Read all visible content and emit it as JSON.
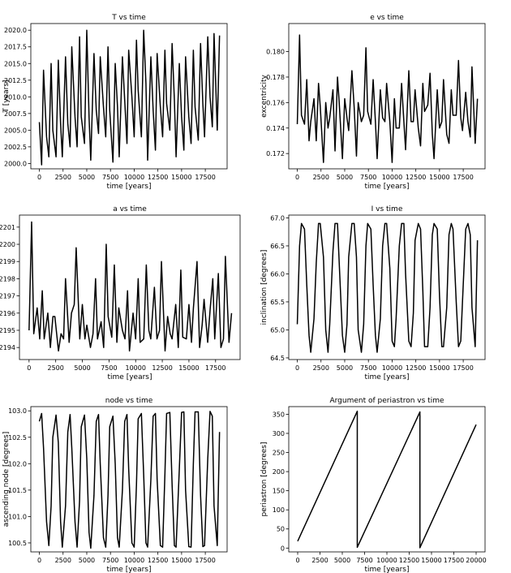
{
  "chart_data": [
    {
      "type": "line",
      "title": "T vs time",
      "xlabel": "time [years]",
      "ylabel": "T [years]",
      "xlim": [
        -900,
        19800
      ],
      "ylim": [
        1999.2,
        2021.0
      ],
      "xticks": [
        0,
        2500,
        5000,
        7500,
        10000,
        12500,
        15000,
        17500
      ],
      "yticks": [
        2000.0,
        2002.5,
        2005.0,
        2007.5,
        2010.0,
        2012.5,
        2015.0,
        2017.5,
        2020.0
      ],
      "ytick_decimals": 1,
      "series": [
        {
          "x": [
            0,
            240,
            440,
            760,
            1000,
            1240,
            1420,
            1760,
            2000,
            2240,
            2420,
            2760,
            3000,
            3240,
            3420,
            3760,
            3980,
            4240,
            4420,
            4760,
            5000,
            5240,
            5420,
            5760,
            6000,
            6240,
            6420,
            6760,
            7000,
            7240,
            7420,
            7760,
            8000,
            8240,
            8420,
            8760,
            9000,
            9240,
            9420,
            9760,
            10000,
            10240,
            10420,
            10760,
            11000,
            11240,
            11420,
            11760,
            12000,
            12240,
            12420,
            12760,
            13000,
            13240,
            13420,
            13760,
            14000,
            14240,
            14420,
            14760,
            15000,
            15240,
            15420,
            15760,
            16000,
            16240,
            16420,
            16760,
            17000,
            17240,
            17420,
            17760,
            18000,
            18240,
            18420,
            18760,
            19000
          ],
          "y": [
            2006.2,
            1999.8,
            2014.0,
            2004.0,
            2001.0,
            2015.0,
            2005.0,
            2001.0,
            2015.5,
            2006.0,
            2001.0,
            2016.0,
            2006.0,
            2002.5,
            2017.5,
            2007.0,
            2002.5,
            2019.0,
            2007.0,
            2003.0,
            2020.0,
            2007.0,
            2000.5,
            2016.5,
            2008.0,
            2004.5,
            2016.0,
            2008.5,
            2004.0,
            2017.5,
            2008.0,
            2000.2,
            2015.0,
            2008.5,
            2001.0,
            2016.0,
            2009.5,
            2003.0,
            2017.0,
            2010.0,
            2004.0,
            2018.5,
            2011.0,
            2004.0,
            2020.0,
            2012.0,
            2000.5,
            2016.0,
            2008.0,
            2002.0,
            2016.5,
            2008.5,
            2004.0,
            2017.0,
            2009.0,
            2005.0,
            2018.0,
            2009.5,
            2001.0,
            2015.0,
            2007.0,
            2002.0,
            2016.0,
            2007.0,
            2003.0,
            2017.0,
            2008.5,
            2003.5,
            2018.0,
            2009.0,
            2004.0,
            2019.0,
            2010.0,
            2005.5,
            2019.5,
            2005.0,
            2019.2
          ]
        }
      ]
    },
    {
      "type": "line",
      "title": "e vs time",
      "xlabel": "time [years]",
      "ylabel": "excentricity",
      "xlim": [
        -900,
        19800
      ],
      "ylim": [
        0.1708,
        0.1822
      ],
      "xticks": [
        0,
        2500,
        5000,
        7500,
        10000,
        12500,
        15000,
        17500
      ],
      "yticks": [
        0.172,
        0.174,
        0.176,
        0.178,
        0.18
      ],
      "ytick_decimals": 3,
      "series": [
        {
          "x": [
            0,
            240,
            440,
            760,
            1000,
            1240,
            1420,
            1760,
            2000,
            2240,
            2420,
            2760,
            3000,
            3240,
            3420,
            3760,
            3980,
            4240,
            4420,
            4760,
            5000,
            5240,
            5420,
            5760,
            6000,
            6240,
            6420,
            6760,
            7000,
            7240,
            7420,
            7760,
            8000,
            8240,
            8420,
            8760,
            9000,
            9240,
            9420,
            9760,
            10000,
            10240,
            10420,
            10760,
            11000,
            11240,
            11420,
            11760,
            12000,
            12240,
            12420,
            12760,
            13000,
            13240,
            13420,
            13760,
            14000,
            14240,
            14420,
            14760,
            15000,
            15240,
            15420,
            15760,
            16000,
            16240,
            16420,
            16760,
            17000,
            17240,
            17420,
            17760,
            18000,
            18240,
            18420,
            18760,
            19000
          ],
          "y": [
            0.1743,
            0.1813,
            0.175,
            0.1743,
            0.1778,
            0.173,
            0.1745,
            0.1763,
            0.173,
            0.1775,
            0.1757,
            0.1713,
            0.176,
            0.174,
            0.1748,
            0.177,
            0.1722,
            0.178,
            0.176,
            0.1716,
            0.1763,
            0.1748,
            0.1738,
            0.1785,
            0.1756,
            0.1718,
            0.176,
            0.1745,
            0.175,
            0.1803,
            0.1753,
            0.1743,
            0.1778,
            0.1745,
            0.1716,
            0.177,
            0.1748,
            0.1745,
            0.1775,
            0.1745,
            0.1713,
            0.1763,
            0.174,
            0.174,
            0.1775,
            0.1745,
            0.1723,
            0.1785,
            0.1745,
            0.1745,
            0.177,
            0.174,
            0.1726,
            0.1775,
            0.1753,
            0.1758,
            0.1783,
            0.1735,
            0.1716,
            0.177,
            0.174,
            0.1745,
            0.1778,
            0.1735,
            0.1728,
            0.177,
            0.175,
            0.175,
            0.1793,
            0.1748,
            0.1738,
            0.1768,
            0.1745,
            0.1733,
            0.1788,
            0.1728,
            0.1763
          ]
        }
      ]
    },
    {
      "type": "line",
      "title": "a vs time",
      "xlabel": "time [years]",
      "ylabel": "",
      "xlim": [
        -900,
        19800
      ],
      "ylim": [
        2.21933,
        2.22017
      ],
      "xticks": [
        0,
        2500,
        5000,
        7500,
        10000,
        12500,
        15000,
        17500
      ],
      "yticks": [
        2.2194,
        2.2195,
        2.2196,
        2.2197,
        2.2198,
        2.2199,
        2.22,
        2.2201
      ],
      "ytick_decimals": 4,
      "ytick_labels_visible": [
        ".2194",
        ".2195",
        ".2196",
        ".2197",
        ".2198",
        ".2199",
        ".2200",
        ".2201"
      ],
      "series": [
        {
          "x": [
            0,
            240,
            440,
            760,
            1000,
            1240,
            1420,
            1760,
            2000,
            2240,
            2420,
            2760,
            3000,
            3240,
            3420,
            3760,
            3980,
            4240,
            4420,
            4760,
            5000,
            5240,
            5420,
            5760,
            6000,
            6240,
            6420,
            6760,
            7000,
            7240,
            7420,
            7760,
            8000,
            8240,
            8420,
            8760,
            9000,
            9240,
            9420,
            9760,
            10000,
            10240,
            10420,
            10760,
            11000,
            11240,
            11420,
            11760,
            12000,
            12240,
            12420,
            12760,
            13000,
            13240,
            13420,
            13760,
            14000,
            14240,
            14420,
            14760,
            15000,
            15240,
            15420,
            15760,
            16000,
            16240,
            16420,
            16760,
            17000,
            17240,
            17420,
            17760,
            18000,
            18240,
            18420,
            18760,
            19000
          ],
          "y": [
            2.2195,
            2.22013,
            2.21948,
            2.21963,
            2.21945,
            2.21973,
            2.21945,
            2.2196,
            2.2194,
            2.21958,
            2.21958,
            2.21938,
            2.21948,
            2.21945,
            2.2198,
            2.21943,
            2.2196,
            2.21965,
            2.21998,
            2.21945,
            2.21965,
            2.21945,
            2.21953,
            2.2194,
            2.21948,
            2.2198,
            2.21945,
            2.21955,
            2.2194,
            2.22,
            2.21958,
            2.21946,
            2.21988,
            2.21943,
            2.21963,
            2.2195,
            2.21945,
            2.21973,
            2.21938,
            2.2196,
            2.21945,
            2.2198,
            2.21943,
            2.21945,
            2.21988,
            2.2195,
            2.21945,
            2.21975,
            2.21945,
            2.2195,
            2.2199,
            2.21938,
            2.21958,
            2.21948,
            2.21945,
            2.21965,
            2.2194,
            2.21985,
            2.21946,
            2.21945,
            2.21965,
            2.21943,
            2.21963,
            2.2199,
            2.2194,
            2.21953,
            2.21968,
            2.21943,
            2.21963,
            2.2198,
            2.21945,
            2.21983,
            2.2194,
            2.21945,
            2.21993,
            2.21943,
            2.2196
          ]
        }
      ]
    },
    {
      "type": "line",
      "title": "I vs time",
      "xlabel": "time [years]",
      "ylabel": "inclination [degrees]",
      "xlim": [
        -900,
        19800
      ],
      "ylim": [
        64.47,
        67.05
      ],
      "xticks": [
        0,
        2500,
        5000,
        7500,
        10000,
        12500,
        15000,
        17500
      ],
      "yticks": [
        64.5,
        65.0,
        65.5,
        66.0,
        66.5,
        67.0
      ],
      "ytick_decimals": 1,
      "series": [
        {
          "x": [
            0,
            240,
            440,
            760,
            1000,
            1240,
            1420,
            1760,
            2000,
            2240,
            2420,
            2760,
            3000,
            3240,
            3420,
            3760,
            3980,
            4240,
            4420,
            4760,
            5000,
            5240,
            5420,
            5760,
            6000,
            6240,
            6420,
            6760,
            7000,
            7240,
            7420,
            7760,
            8000,
            8240,
            8420,
            8760,
            9000,
            9240,
            9420,
            9760,
            10000,
            10240,
            10420,
            10760,
            11000,
            11240,
            11420,
            11760,
            12000,
            12240,
            12420,
            12760,
            13000,
            13240,
            13420,
            13760,
            14000,
            14240,
            14420,
            14760,
            15000,
            15240,
            15420,
            15760,
            16000,
            16240,
            16420,
            16760,
            17000,
            17240,
            17420,
            17760,
            18000,
            18240,
            18420,
            18760,
            19000
          ],
          "y": [
            65.1,
            66.5,
            66.9,
            66.8,
            65.8,
            64.9,
            64.6,
            65.2,
            66.2,
            66.9,
            66.9,
            66.3,
            65.0,
            64.6,
            65.1,
            66.4,
            66.9,
            66.9,
            66.2,
            64.9,
            64.6,
            65.1,
            66.3,
            66.9,
            66.9,
            66.3,
            65.0,
            64.6,
            65.1,
            66.5,
            66.9,
            66.8,
            65.8,
            64.9,
            64.6,
            65.2,
            66.5,
            66.9,
            66.9,
            66.1,
            64.8,
            64.7,
            65.2,
            66.5,
            66.9,
            66.9,
            66.0,
            64.8,
            64.7,
            65.3,
            66.6,
            66.9,
            66.8,
            65.7,
            64.7,
            64.7,
            65.4,
            66.7,
            66.9,
            66.8,
            65.6,
            64.7,
            64.7,
            65.4,
            66.7,
            66.9,
            66.8,
            65.5,
            64.7,
            64.8,
            65.5,
            66.8,
            66.9,
            66.7,
            65.4,
            64.7,
            66.6
          ]
        }
      ]
    },
    {
      "type": "line",
      "title": "node vs time",
      "xlabel": "time [years]",
      "ylabel": "ascending node [degrees]",
      "xlim": [
        -900,
        19800
      ],
      "ylim": [
        100.33,
        103.08
      ],
      "xticks": [
        0,
        2500,
        5000,
        7500,
        10000,
        12500,
        15000,
        17500
      ],
      "yticks": [
        100.5,
        101.0,
        101.5,
        102.0,
        102.5,
        103.0
      ],
      "ytick_decimals": 1,
      "series": [
        {
          "x": [
            0,
            240,
            440,
            760,
            1000,
            1240,
            1420,
            1760,
            2000,
            2240,
            2420,
            2760,
            3000,
            3240,
            3420,
            3760,
            3980,
            4240,
            4420,
            4760,
            5000,
            5240,
            5420,
            5760,
            6000,
            6240,
            6420,
            6760,
            7000,
            7240,
            7420,
            7760,
            8000,
            8240,
            8420,
            8760,
            9000,
            9240,
            9420,
            9760,
            10000,
            10240,
            10420,
            10760,
            11000,
            11240,
            11420,
            11760,
            12000,
            12240,
            12420,
            12760,
            13000,
            13240,
            13420,
            13760,
            14000,
            14240,
            14420,
            14760,
            15000,
            15240,
            15420,
            15760,
            16000,
            16240,
            16420,
            16760,
            17000,
            17240,
            17420,
            17760,
            18000,
            18240,
            18420,
            18760,
            19000
          ],
          "y": [
            102.8,
            102.95,
            102.3,
            100.9,
            100.45,
            101.2,
            102.5,
            102.92,
            102.4,
            100.9,
            100.42,
            101.2,
            102.6,
            102.93,
            102.3,
            100.9,
            100.42,
            101.3,
            102.7,
            102.92,
            102.1,
            100.7,
            100.4,
            101.4,
            102.8,
            102.93,
            102.0,
            100.6,
            100.42,
            101.4,
            102.7,
            102.9,
            102.0,
            100.6,
            100.42,
            101.5,
            102.8,
            102.93,
            101.9,
            100.5,
            100.42,
            101.6,
            102.85,
            102.95,
            101.8,
            100.5,
            100.42,
            101.7,
            102.9,
            102.95,
            101.7,
            100.45,
            100.42,
            101.8,
            102.95,
            102.97,
            101.6,
            100.45,
            100.42,
            101.9,
            102.97,
            102.98,
            101.5,
            100.43,
            100.42,
            102.0,
            102.98,
            102.98,
            101.4,
            100.43,
            100.45,
            102.1,
            102.99,
            102.9,
            101.2,
            100.45,
            102.6
          ]
        }
      ]
    },
    {
      "type": "line",
      "title": "Argument of periastron vs time",
      "xlabel": "time [years]",
      "ylabel": "periastron [degrees]",
      "xlim": [
        -1000,
        21000
      ],
      "ylim": [
        -10,
        370
      ],
      "xticks": [
        0,
        2500,
        5000,
        7500,
        10000,
        12500,
        15000,
        17500,
        20000
      ],
      "yticks": [
        0,
        50,
        100,
        150,
        200,
        250,
        300,
        350
      ],
      "ytick_decimals": 0,
      "series": [
        {
          "x": [
            0,
            6680,
            6680,
            13700,
            13700,
            20000
          ],
          "y": [
            18,
            358,
            2,
            356,
            1,
            323
          ]
        }
      ]
    }
  ]
}
